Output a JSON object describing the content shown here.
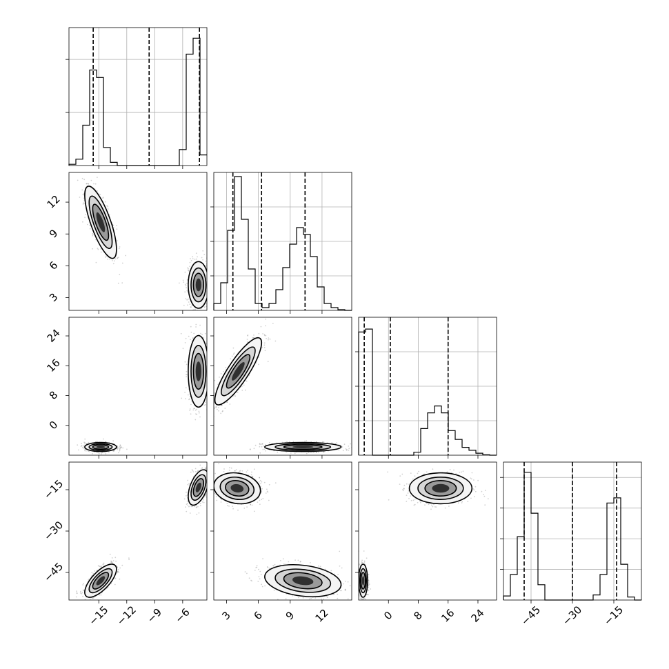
{
  "chart_data": {
    "type": "corner",
    "parameters": [
      {
        "ticks": [
          -15,
          -12,
          -9,
          -6
        ],
        "tick_labels": [
          "−15",
          "−12",
          "−9",
          "−6"
        ],
        "range": [
          -18.2,
          -3.4
        ],
        "quantiles": [
          -15.6,
          -9.6,
          -4.2
        ]
      },
      {
        "ticks": [
          3,
          6,
          9,
          12
        ],
        "tick_labels": [
          "3",
          "6",
          "9",
          "12"
        ],
        "range": [
          1.8,
          14.8
        ],
        "quantiles": [
          3.6,
          6.3,
          10.4
        ]
      },
      {
        "ticks": [
          0,
          8,
          16,
          24
        ],
        "tick_labels": [
          "0",
          "8",
          "16",
          "24"
        ],
        "range": [
          -8.0,
          29.0
        ],
        "quantiles": [
          -6.5,
          0.5,
          16.0
        ]
      },
      {
        "ticks": [
          -45,
          -30,
          -15
        ],
        "tick_labels": [
          "−45",
          "−30",
          "−15"
        ],
        "range": [
          -55.0,
          -5.0
        ],
        "quantiles": [
          -47.5,
          -30.0,
          -14.0
        ]
      }
    ],
    "histograms": [
      {
        "param": 0,
        "edges": [
          -18.2,
          -17.46,
          -16.72,
          -15.98,
          -15.24,
          -14.5,
          -13.76,
          -13.02,
          -12.28,
          -11.54,
          -10.8,
          -10.06,
          -9.32,
          -8.58,
          -7.84,
          -7.1,
          -6.36,
          -5.62,
          -4.88,
          -4.14,
          -3.4
        ],
        "counts": [
          0.012,
          0.06,
          0.38,
          0.9,
          0.83,
          0.17,
          0.03,
          0,
          0,
          0,
          0,
          0,
          0,
          0,
          0,
          0,
          0.15,
          1.05,
          1.2,
          0.1
        ],
        "ymax": 1.3,
        "gridlines": [
          0.5,
          1.0
        ]
      },
      {
        "param": 1,
        "edges": [
          1.8,
          2.45,
          3.1,
          3.75,
          4.4,
          5.05,
          5.7,
          6.35,
          7.0,
          7.65,
          8.3,
          8.95,
          9.6,
          10.25,
          10.9,
          11.55,
          12.2,
          12.85,
          13.5,
          14.15,
          14.8
        ],
        "counts": [
          0.05,
          0.2,
          0.58,
          0.97,
          0.66,
          0.3,
          0.05,
          0.02,
          0.05,
          0.15,
          0.31,
          0.48,
          0.6,
          0.55,
          0.39,
          0.17,
          0.05,
          0.02,
          0.005,
          0
        ],
        "ymax": 1.0,
        "gridlines": [
          0.25,
          0.5,
          0.75
        ]
      },
      {
        "param": 2,
        "edges": [
          -8.0,
          -6.15,
          -4.3,
          -2.45,
          -0.6,
          1.25,
          3.1,
          4.95,
          6.8,
          8.65,
          10.5,
          12.35,
          14.2,
          16.05,
          17.9,
          19.75,
          21.6,
          23.45,
          25.3,
          27.15,
          29.0
        ],
        "counts": [
          1.25,
          1.28,
          0,
          0,
          0,
          0,
          0,
          0,
          0.03,
          0.27,
          0.43,
          0.5,
          0.43,
          0.25,
          0.16,
          0.08,
          0.05,
          0.02,
          0.005,
          0
        ],
        "ymax": 1.4,
        "gridlines": [
          0.35,
          0.7,
          1.05
        ]
      },
      {
        "param": 3,
        "edges": [
          -55.0,
          -52.5,
          -50.0,
          -47.5,
          -45.0,
          -42.5,
          -40.0,
          -37.5,
          -35.0,
          -32.5,
          -30.0,
          -27.5,
          -25.0,
          -22.5,
          -20.0,
          -17.5,
          -15.0,
          -12.5,
          -10.0,
          -7.5,
          -5.0
        ],
        "counts": [
          0.04,
          0.25,
          0.62,
          1.25,
          0.85,
          0.15,
          0,
          0,
          0,
          0,
          0,
          0,
          0,
          0.05,
          0.25,
          0.95,
          1.0,
          0.35,
          0.03,
          0
        ],
        "ymax": 1.35,
        "gridlines": [
          0.3,
          0.6,
          0.9,
          1.2
        ]
      }
    ],
    "joint_clusters": [
      {
        "x": 0,
        "y": 1,
        "clusters": [
          {
            "mean": [
              -14.8,
              10.1
            ],
            "std": [
              0.85,
              1.7
            ],
            "corr": -0.75
          },
          {
            "mean": [
              -4.3,
              4.2
            ],
            "std": [
              0.55,
              1.1
            ],
            "corr": 0.0
          }
        ]
      },
      {
        "x": 0,
        "y": 2,
        "clusters": [
          {
            "mean": [
              -4.3,
              14.5
            ],
            "std": [
              0.55,
              4.8
            ],
            "corr": 0.0
          },
          {
            "mean": [
              -14.8,
              -5.8
            ],
            "std": [
              0.85,
              0.6
            ],
            "corr": 0.0
          }
        ]
      },
      {
        "x": 1,
        "y": 2,
        "clusters": [
          {
            "mean": [
              4.1,
              14.5
            ],
            "std": [
              1.1,
              4.5
            ],
            "corr": 0.85
          },
          {
            "mean": [
              10.2,
              -5.8
            ],
            "std": [
              1.8,
              0.6
            ],
            "corr": 0.0
          }
        ]
      },
      {
        "x": 0,
        "y": 3,
        "clusters": [
          {
            "mean": [
              -4.3,
              -14.2
            ],
            "std": [
              0.55,
              3.2
            ],
            "corr": 0.5
          },
          {
            "mean": [
              -14.8,
              -48.0
            ],
            "std": [
              0.85,
              3.0
            ],
            "corr": 0.7
          }
        ]
      },
      {
        "x": 1,
        "y": 3,
        "clusters": [
          {
            "mean": [
              4.0,
              -14.5
            ],
            "std": [
              1.1,
              2.8
            ],
            "corr": -0.15
          },
          {
            "mean": [
              10.2,
              -48.0
            ],
            "std": [
              1.8,
              2.9
            ],
            "corr": -0.25
          }
        ]
      },
      {
        "x": 2,
        "y": 3,
        "clusters": [
          {
            "mean": [
              14.0,
              -14.5
            ],
            "std": [
              4.2,
              2.8
            ],
            "corr": 0.0
          },
          {
            "mean": [
              -6.8,
              -48.0
            ],
            "std": [
              0.6,
              3.0
            ],
            "corr": 0.0
          }
        ]
      }
    ],
    "title": "",
    "grid": true,
    "legend": "none"
  }
}
